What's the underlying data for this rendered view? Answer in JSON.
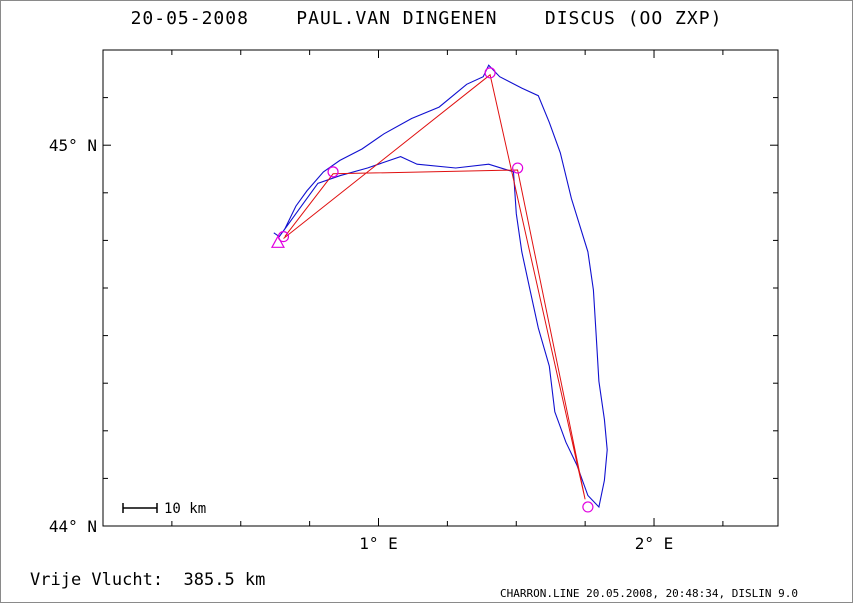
{
  "header": {
    "title": "20-05-2008    PAUL.VAN DINGENEN    DISCUS (OO ZXP)"
  },
  "footer": {
    "distance": "Vrije Vlucht:  385.5 km",
    "credit": "CHARRON.LINE 20.05.2008, 20:48:34, DISLIN 9.0"
  },
  "chart_data": {
    "type": "line",
    "title": "20-05-2008    PAUL.VAN DINGENEN    DISCUS (OO ZXP)",
    "xlim": [
      0.0,
      2.45
    ],
    "ylim": [
      44.0,
      45.25
    ],
    "x_ticks": [
      {
        "value": 1.0,
        "label": "1° E"
      },
      {
        "value": 2.0,
        "label": "2° E"
      }
    ],
    "y_ticks": [
      {
        "value": 44.0,
        "label": "44° N"
      },
      {
        "value": 45.0,
        "label": "45° N"
      }
    ],
    "scale_bar": {
      "label": "10 km"
    },
    "grid": false,
    "colors": {
      "track": "#1010d0",
      "route": "#e01010",
      "markers": "#e000e0"
    },
    "series": [
      {
        "kind": "track",
        "points": [
          [
            0.62,
            44.77
          ],
          [
            0.64,
            44.76
          ],
          [
            0.66,
            44.78
          ],
          [
            0.7,
            44.84
          ],
          [
            0.74,
            44.88
          ],
          [
            0.8,
            44.93
          ],
          [
            0.86,
            44.96
          ],
          [
            0.94,
            44.99
          ],
          [
            1.02,
            45.03
          ],
          [
            1.12,
            45.07
          ],
          [
            1.22,
            45.1
          ],
          [
            1.32,
            45.16
          ],
          [
            1.38,
            45.18
          ],
          [
            1.4,
            45.21
          ],
          [
            1.44,
            45.18
          ],
          [
            1.52,
            45.15
          ],
          [
            1.58,
            45.13
          ],
          [
            1.62,
            45.06
          ],
          [
            1.66,
            44.98
          ],
          [
            1.7,
            44.86
          ],
          [
            1.76,
            44.72
          ],
          [
            1.78,
            44.62
          ],
          [
            1.79,
            44.5
          ],
          [
            1.8,
            44.38
          ],
          [
            1.82,
            44.28
          ],
          [
            1.83,
            44.2
          ],
          [
            1.82,
            44.12
          ],
          [
            1.8,
            44.05
          ],
          [
            1.76,
            44.08
          ],
          [
            1.72,
            44.16
          ],
          [
            1.68,
            44.22
          ],
          [
            1.64,
            44.3
          ],
          [
            1.62,
            44.42
          ],
          [
            1.58,
            44.52
          ],
          [
            1.55,
            44.62
          ],
          [
            1.52,
            44.72
          ],
          [
            1.5,
            44.82
          ],
          [
            1.49,
            44.93
          ],
          [
            1.4,
            44.95
          ],
          [
            1.28,
            44.94
          ],
          [
            1.14,
            44.95
          ],
          [
            1.08,
            44.97
          ],
          [
            0.96,
            44.94
          ],
          [
            0.86,
            44.92
          ],
          [
            0.78,
            44.9
          ],
          [
            0.72,
            44.84
          ],
          [
            0.68,
            44.8
          ],
          [
            0.65,
            44.77
          ]
        ]
      },
      {
        "kind": "route",
        "points": [
          [
            0.655,
            44.755
          ],
          [
            1.405,
            45.185
          ],
          [
            1.75,
            44.07
          ],
          [
            1.505,
            44.935
          ],
          [
            0.835,
            44.925
          ],
          [
            0.66,
            44.76
          ]
        ]
      }
    ],
    "turnpoints": [
      [
        1.405,
        45.19
      ],
      [
        1.505,
        44.94
      ],
      [
        1.76,
        44.05
      ],
      [
        0.835,
        44.93
      ],
      [
        0.655,
        44.76
      ]
    ],
    "start": [
      0.635,
      44.745
    ]
  }
}
